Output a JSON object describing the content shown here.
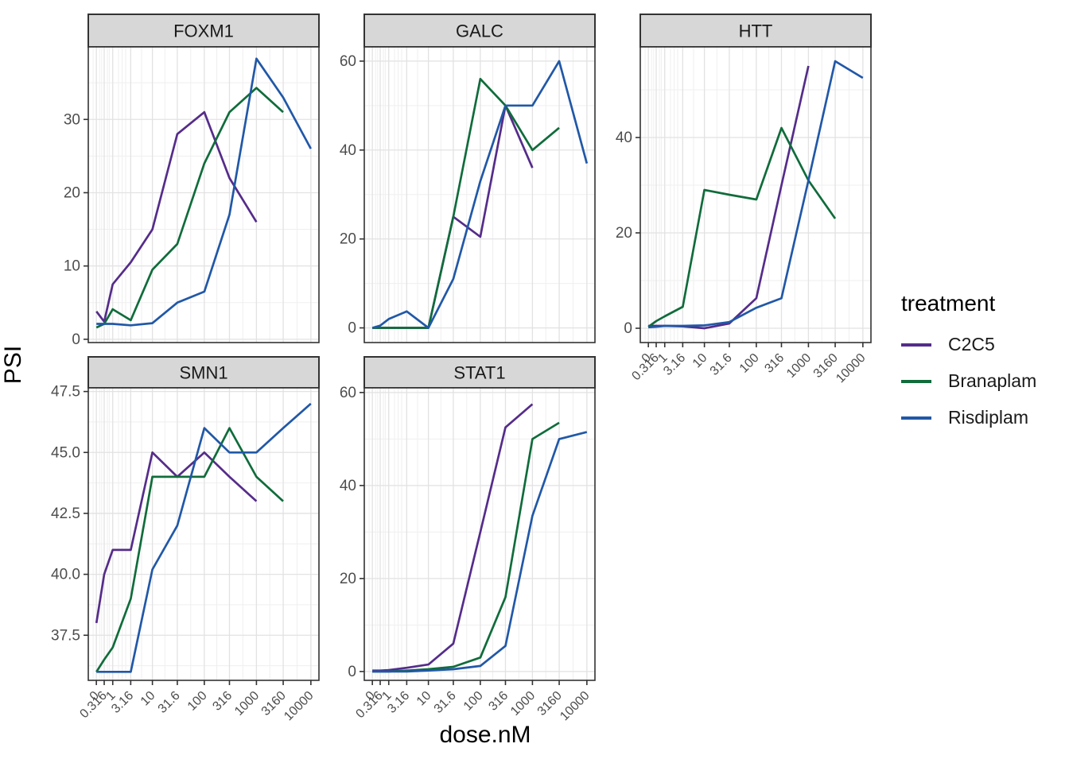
{
  "figure": {
    "y_axis_title": "PSI",
    "x_axis_title": "dose.nM",
    "legend": {
      "title": "treatment",
      "entries": [
        {
          "label": "C2C5",
          "color": "#552C8A"
        },
        {
          "label": "Branaplam",
          "color": "#106C3B"
        },
        {
          "label": "Risdiplam",
          "color": "#2158A7"
        }
      ]
    }
  },
  "chart_data": {
    "type": "line",
    "x_scale": "pseudo-log",
    "xlabel": "dose.nM",
    "ylabel": "PSI",
    "grid": true,
    "legend_position": "right",
    "x_tick_labels": [
      "0",
      "0.316",
      "1",
      "3.16",
      "10",
      "31.6",
      "100",
      "316",
      "1000",
      "3160",
      "10000"
    ],
    "facets": [
      {
        "title": "FOXM1",
        "y_ticks": [
          0,
          10,
          20,
          30
        ],
        "y_tick_labels": [
          "0",
          "10",
          "20",
          "30"
        ],
        "ylim": [
          -0.45,
          39.9
        ],
        "series": [
          {
            "name": "C2C5",
            "values": [
              3.8,
              2.4,
              7.5,
              10.5,
              15,
              28,
              31,
              22,
              16
            ]
          },
          {
            "name": "Branaplam",
            "values": [
              1.6,
              2.1,
              4.1,
              2.6,
              9.5,
              13,
              24,
              31,
              34.3,
              31
            ]
          },
          {
            "name": "Risdiplam",
            "values": [
              2.1,
              2.1,
              2.1,
              1.9,
              2.2,
              5,
              6.5,
              17,
              38.3,
              33,
              26
            ]
          }
        ]
      },
      {
        "title": "GALC",
        "y_ticks": [
          0,
          20,
          40,
          60
        ],
        "y_tick_labels": [
          "0",
          "20",
          "40",
          "60"
        ],
        "ylim": [
          -3.3,
          63.2
        ],
        "series": [
          {
            "name": "C2C5",
            "values": [
              0,
              0,
              0,
              0,
              0,
              25,
              20.5,
              50,
              36
            ]
          },
          {
            "name": "Branaplam",
            "values": [
              0,
              0,
              0,
              0,
              0,
              25,
              56,
              50,
              40,
              45
            ]
          },
          {
            "name": "Risdiplam",
            "values": [
              0,
              0.5,
              2,
              3.7,
              0,
              11,
              33,
              50,
              50,
              60,
              37
            ]
          }
        ]
      },
      {
        "title": "HTT",
        "y_ticks": [
          0,
          20,
          40
        ],
        "y_tick_labels": [
          "0",
          "20",
          "40"
        ],
        "ylim": [
          -3,
          59
        ],
        "series": [
          {
            "name": "C2C5",
            "values": [
              0.5,
              0.5,
              0.5,
              0.4,
              0,
              1,
              6.3,
              30,
              55
            ]
          },
          {
            "name": "Branaplam",
            "values": [
              0.3,
              1.5,
              2.5,
              4.5,
              29,
              28,
              27,
              42,
              31,
              23
            ]
          },
          {
            "name": "Risdiplam",
            "values": [
              0.2,
              0.3,
              0.5,
              0.5,
              0.6,
              1.3,
              4.3,
              6.3,
              31,
              56,
              52.5
            ]
          }
        ]
      },
      {
        "title": "SMN1",
        "y_ticks": [
          37.5,
          40,
          42.5,
          45,
          47.5
        ],
        "y_tick_labels": [
          "37.5",
          "40.0",
          "42.5",
          "45.0",
          "47.5"
        ],
        "ylim": [
          35.65,
          47.65
        ],
        "series": [
          {
            "name": "C2C5",
            "values": [
              38,
              40,
              41,
              41,
              45,
              44,
              45,
              44,
              43
            ]
          },
          {
            "name": "Branaplam",
            "values": [
              36,
              36.5,
              37,
              39,
              44,
              44,
              44,
              46,
              44,
              43
            ]
          },
          {
            "name": "Risdiplam",
            "values": [
              36,
              36,
              36,
              36,
              40.2,
              42,
              46,
              45,
              45,
              46,
              47
            ]
          }
        ]
      },
      {
        "title": "STAT1",
        "y_ticks": [
          0,
          20,
          40,
          60
        ],
        "y_tick_labels": [
          "0",
          "20",
          "40",
          "60"
        ],
        "ylim": [
          -1.9,
          61
        ],
        "series": [
          {
            "name": "C2C5",
            "values": [
              0.2,
              0.2,
              0.3,
              0.8,
              1.5,
              6,
              30,
              52.5,
              57.5
            ]
          },
          {
            "name": "Branaplam",
            "values": [
              0,
              0,
              0,
              0.2,
              0.5,
              1,
              3,
              16,
              50,
              53.5
            ]
          },
          {
            "name": "Risdiplam",
            "values": [
              0,
              0,
              0,
              0,
              0.2,
              0.5,
              1.2,
              5.5,
              33.5,
              50,
              51.5
            ]
          }
        ]
      }
    ]
  }
}
